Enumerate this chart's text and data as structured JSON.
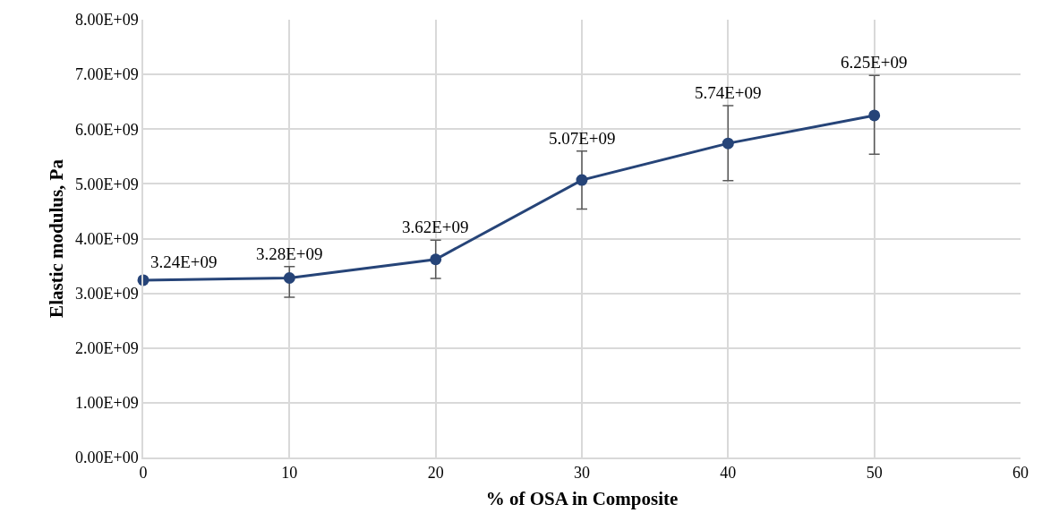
{
  "chart_data": {
    "type": "line",
    "xlabel": "% of OSA in Composite",
    "ylabel": "Elastic modulus, Pa",
    "x": [
      0,
      10,
      20,
      30,
      40,
      50
    ],
    "series": [
      {
        "color": "#264478",
        "values": [
          3240000000,
          3280000000,
          3620000000,
          5070000000,
          5740000000,
          6250000000
        ],
        "value_labels": [
          "3.24E+09",
          "3.28E+09",
          "3.62E+09",
          "5.07E+09",
          "5.74E+09",
          "6.25E+09"
        ],
        "errors": [
          null,
          [
            2930000000,
            3490000000
          ],
          [
            3270000000,
            3970000000
          ],
          [
            4540000000,
            5600000000
          ],
          [
            5060000000,
            6430000000
          ],
          [
            5540000000,
            6980000000
          ]
        ]
      }
    ],
    "xlim": [
      0,
      60
    ],
    "xticks": [
      0,
      10,
      20,
      30,
      40,
      50,
      60
    ],
    "ylim": [
      0,
      8000000000
    ],
    "yticks": [
      {
        "value": 0,
        "label": "0.00E+00"
      },
      {
        "value": 1000000000,
        "label": "1.00E+09"
      },
      {
        "value": 2000000000,
        "label": "2.00E+09"
      },
      {
        "value": 3000000000,
        "label": "3.00E+09"
      },
      {
        "value": 4000000000,
        "label": "4.00E+09"
      },
      {
        "value": 5000000000,
        "label": "5.00E+09"
      },
      {
        "value": 6000000000,
        "label": "6.00E+09"
      },
      {
        "value": 7000000000,
        "label": "7.00E+09"
      },
      {
        "value": 8000000000,
        "label": "8.00E+09"
      }
    ],
    "grid": true,
    "marker": "circle",
    "line_style": "solid"
  }
}
